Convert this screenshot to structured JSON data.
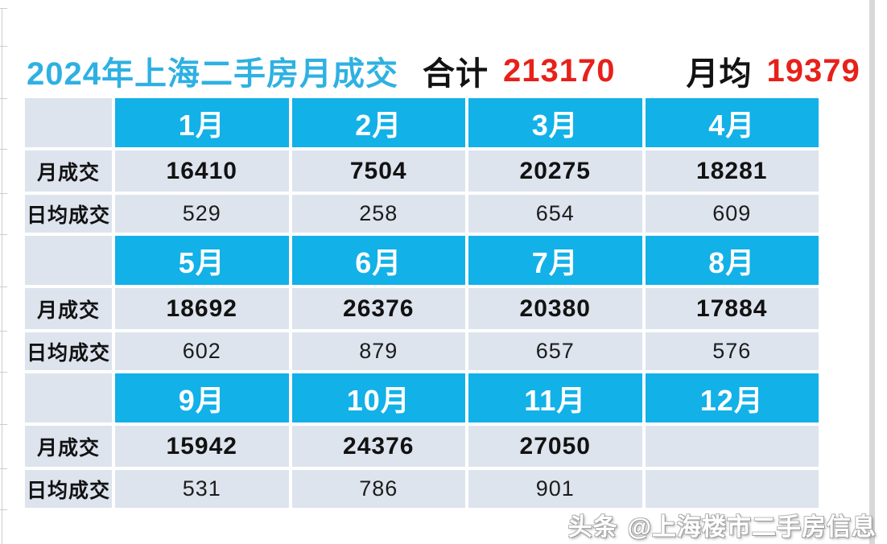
{
  "title": {
    "main": "2024年上海二手房月成交",
    "total_label": "合计",
    "total_value": "213170",
    "avg_label": "月均",
    "avg_value": "19379"
  },
  "row_labels": {
    "monthly": "月成交",
    "daily": "日均成交"
  },
  "groups": [
    {
      "months": [
        "1月",
        "2月",
        "3月",
        "4月"
      ],
      "monthly": [
        "16410",
        "7504",
        "20275",
        "18281"
      ],
      "daily": [
        "529",
        "258",
        "654",
        "609"
      ]
    },
    {
      "months": [
        "5月",
        "6月",
        "7月",
        "8月"
      ],
      "monthly": [
        "18692",
        "26376",
        "20380",
        "17884"
      ],
      "daily": [
        "602",
        "879",
        "657",
        "576"
      ]
    },
    {
      "months": [
        "9月",
        "10月",
        "11月",
        "12月"
      ],
      "monthly": [
        "15942",
        "24376",
        "27050",
        ""
      ],
      "daily": [
        "531",
        "786",
        "901",
        ""
      ]
    }
  ],
  "watermark": {
    "source": "头条",
    "handle": "@上海楼市二手房信息"
  },
  "colors": {
    "accent_blue": "#12b1e8",
    "title_blue": "#2eb1e2",
    "red": "#e7211a",
    "cell_bg": "#dde4ee"
  },
  "chart_data": {
    "type": "table",
    "title": "2024年上海二手房月成交",
    "summary": {
      "合计": 213170,
      "月均": 19379
    },
    "categories": [
      "1月",
      "2月",
      "3月",
      "4月",
      "5月",
      "6月",
      "7月",
      "8月",
      "9月",
      "10月",
      "11月",
      "12月"
    ],
    "series": [
      {
        "name": "月成交",
        "values": [
          16410,
          7504,
          20275,
          18281,
          18692,
          26376,
          20380,
          17884,
          15942,
          24376,
          27050,
          null
        ]
      },
      {
        "name": "日均成交",
        "values": [
          529,
          258,
          654,
          609,
          602,
          879,
          657,
          576,
          531,
          786,
          901,
          null
        ]
      }
    ],
    "legend_position": "none",
    "grid": false
  }
}
